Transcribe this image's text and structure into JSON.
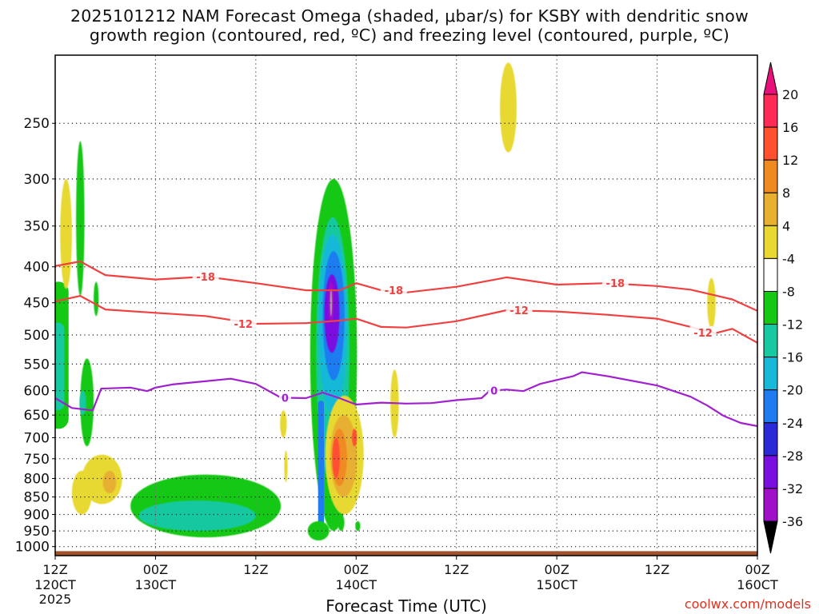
{
  "title_line1": "2025101212 NAM Forecast Omega (shaded, μbar/s) for KSBY with dendritic snow",
  "title_line2": "growth region (contoured, red, ºC) and freezing level (contoured, purple, ºC)",
  "credit": "coolwx.com/models",
  "chart_data": {
    "type": "time-height cross-section",
    "xlabel": "Forecast Time (UTC)",
    "ylabel": "",
    "x_ticks": [
      {
        "top": "12Z",
        "bottom": "120CT",
        "extra": "2025"
      },
      {
        "top": "00Z",
        "bottom": "130CT",
        "extra": ""
      },
      {
        "top": "12Z",
        "bottom": "",
        "extra": ""
      },
      {
        "top": "00Z",
        "bottom": "140CT",
        "extra": ""
      },
      {
        "top": "12Z",
        "bottom": "",
        "extra": ""
      },
      {
        "top": "00Z",
        "bottom": "150CT",
        "extra": ""
      },
      {
        "top": "12Z",
        "bottom": "",
        "extra": ""
      },
      {
        "top": "00Z",
        "bottom": "160CT",
        "extra": ""
      }
    ],
    "x_hours": [
      0,
      12,
      24,
      36,
      48,
      60,
      72,
      84
    ],
    "y_ticks": [
      250,
      300,
      350,
      400,
      450,
      500,
      550,
      600,
      650,
      700,
      750,
      800,
      850,
      900,
      950,
      1000
    ],
    "y_range_hPa": [
      200,
      1030
    ],
    "y_scale": "log",
    "grid": true,
    "colorbar": {
      "labels": [
        "20",
        "16",
        "12",
        "8",
        "4",
        "-4",
        "-8",
        "-12",
        "-16",
        "-20",
        "-24",
        "-28",
        "-32",
        "-36"
      ],
      "colors": [
        "#ff2a55",
        "#ff5030",
        "#f08a20",
        "#e8b030",
        "#e8d830",
        "#ffffff",
        "#14c814",
        "#18c8a0",
        "#18b8d8",
        "#1e7cf0",
        "#2a2ad8",
        "#7a10e0",
        "#a010c8",
        "#a8a8a8"
      ]
    },
    "contours": [
      {
        "label": "-18",
        "color": "#f04040",
        "points": [
          [
            0,
            399
          ],
          [
            3,
            393
          ],
          [
            6,
            411
          ],
          [
            12,
            417
          ],
          [
            18,
            413
          ],
          [
            24,
            422
          ],
          [
            30,
            432
          ],
          [
            34,
            432
          ],
          [
            36,
            422
          ],
          [
            39,
            432
          ],
          [
            42,
            435
          ],
          [
            48,
            427
          ],
          [
            54,
            414
          ],
          [
            60,
            424
          ],
          [
            66,
            422
          ],
          [
            72,
            426
          ],
          [
            76,
            431
          ],
          [
            81,
            445
          ],
          [
            84,
            462
          ]
        ]
      },
      {
        "label": "-12",
        "color": "#f04040",
        "points": [
          [
            0,
            448
          ],
          [
            3,
            440
          ],
          [
            6,
            460
          ],
          [
            12,
            465
          ],
          [
            18,
            470
          ],
          [
            24,
            482
          ],
          [
            30,
            481
          ],
          [
            34,
            477
          ],
          [
            36,
            474
          ],
          [
            39,
            487
          ],
          [
            42,
            488
          ],
          [
            48,
            478
          ],
          [
            54,
            461
          ],
          [
            60,
            463
          ],
          [
            66,
            468
          ],
          [
            72,
            474
          ],
          [
            76,
            487
          ],
          [
            79,
            497
          ],
          [
            81,
            490
          ],
          [
            84,
            513
          ]
        ]
      },
      {
        "label": "0",
        "color": "#a020d0",
        "points": [
          [
            0,
            615
          ],
          [
            2,
            635
          ],
          [
            4.5,
            640
          ],
          [
            5.5,
            596
          ],
          [
            9,
            594
          ],
          [
            11,
            601
          ],
          [
            12,
            594
          ],
          [
            14,
            588
          ],
          [
            21,
            577
          ],
          [
            24,
            587
          ],
          [
            27,
            614
          ],
          [
            30,
            615
          ],
          [
            32,
            604
          ],
          [
            34,
            615
          ],
          [
            36,
            628
          ],
          [
            39,
            624
          ],
          [
            42,
            626
          ],
          [
            45,
            625
          ],
          [
            48,
            619
          ],
          [
            51,
            615
          ],
          [
            52,
            600
          ],
          [
            54,
            598
          ],
          [
            56,
            601
          ],
          [
            58,
            587
          ],
          [
            62,
            572
          ],
          [
            63,
            565
          ],
          [
            66,
            572
          ],
          [
            72,
            590
          ],
          [
            76,
            612
          ],
          [
            78,
            630
          ],
          [
            80,
            652
          ],
          [
            82,
            667
          ],
          [
            84,
            674
          ]
        ]
      }
    ],
    "contour_labels": [
      {
        "text": "-18",
        "x": 18,
        "y": 413
      },
      {
        "text": "-18",
        "x": 40.5,
        "y": 432
      },
      {
        "text": "-18",
        "x": 67,
        "y": 422
      },
      {
        "text": "-12",
        "x": 22.5,
        "y": 482
      },
      {
        "text": "-12",
        "x": 55.5,
        "y": 461
      },
      {
        "text": "-12",
        "x": 77.5,
        "y": 496
      },
      {
        "text": "0",
        "x": 27.5,
        "y": 614
      },
      {
        "text": "0",
        "x": 52.5,
        "y": 600
      }
    ],
    "omega_features": [
      {
        "level": "-8",
        "kind": "band",
        "x": 0.4,
        "dx": 1.2,
        "top": 420,
        "bottom": 680
      },
      {
        "level": "-12",
        "kind": "band",
        "x": 0.3,
        "dx": 0.8,
        "top": 480,
        "bottom": 640
      },
      {
        "level": "-8",
        "kind": "blob",
        "x": 3.0,
        "dx": 0.5,
        "top": 265,
        "bottom": 440
      },
      {
        "level": "-8",
        "kind": "blob",
        "x": 3.8,
        "dx": 0.8,
        "top": 540,
        "bottom": 720
      },
      {
        "level": "-12",
        "kind": "blob",
        "x": 3.3,
        "dx": 0.4,
        "top": 600,
        "bottom": 650
      },
      {
        "level": "4",
        "kind": "blob",
        "x": 1.3,
        "dx": 0.7,
        "top": 300,
        "bottom": 430
      },
      {
        "level": "4",
        "kind": "blob",
        "x": 3.2,
        "dx": 1.2,
        "top": 780,
        "bottom": 900
      },
      {
        "level": "4",
        "kind": "blob",
        "x": 5.6,
        "dx": 2.4,
        "top": 740,
        "bottom": 870
      },
      {
        "level": "8",
        "kind": "blob",
        "x": 6.5,
        "dx": 0.8,
        "top": 780,
        "bottom": 840
      },
      {
        "level": "-8",
        "kind": "blob",
        "x": 18,
        "dx": 9,
        "top": 790,
        "bottom": 970
      },
      {
        "level": "-12",
        "kind": "blob",
        "x": 17,
        "dx": 7,
        "top": 860,
        "bottom": 950
      },
      {
        "level": "-8",
        "kind": "blob",
        "x": 33.3,
        "dx": 2.8,
        "top": 300,
        "bottom": 950
      },
      {
        "level": "-12",
        "kind": "blob",
        "x": 33.2,
        "dx": 2.0,
        "top": 340,
        "bottom": 820
      },
      {
        "level": "-16",
        "kind": "blob",
        "x": 33.2,
        "dx": 1.7,
        "top": 360,
        "bottom": 650
      },
      {
        "level": "-20",
        "kind": "blob",
        "x": 33.3,
        "dx": 1.3,
        "top": 380,
        "bottom": 580
      },
      {
        "level": "-28",
        "kind": "blob",
        "x": 33.1,
        "dx": 0.9,
        "top": 410,
        "bottom": 530
      },
      {
        "level": "-32",
        "kind": "blob",
        "x": 33.0,
        "dx": 0.35,
        "top": 420,
        "bottom": 480
      },
      {
        "level": "-36",
        "kind": "blob",
        "x": 33.0,
        "dx": 0.12,
        "top": 430,
        "bottom": 470
      },
      {
        "level": "-20",
        "kind": "band",
        "x": 31.8,
        "dx": 0.35,
        "top": 620,
        "bottom": 960
      },
      {
        "level": "-8",
        "kind": "blob",
        "x": 31.5,
        "dx": 1.3,
        "top": 920,
        "bottom": 980
      },
      {
        "level": "4",
        "kind": "blob",
        "x": 34.6,
        "dx": 2.3,
        "top": 610,
        "bottom": 900
      },
      {
        "level": "8",
        "kind": "blob",
        "x": 34.5,
        "dx": 1.6,
        "top": 650,
        "bottom": 850
      },
      {
        "level": "12",
        "kind": "blob",
        "x": 34.0,
        "dx": 0.9,
        "top": 680,
        "bottom": 820
      },
      {
        "level": "16",
        "kind": "blob",
        "x": 33.6,
        "dx": 0.45,
        "top": 700,
        "bottom": 800
      },
      {
        "level": "16",
        "kind": "blob",
        "x": 35.8,
        "dx": 0.3,
        "top": 680,
        "bottom": 720
      },
      {
        "level": "-8",
        "kind": "blob",
        "x": 34.2,
        "dx": 0.4,
        "top": 900,
        "bottom": 950
      },
      {
        "level": "-8",
        "kind": "blob",
        "x": 36.2,
        "dx": 0.3,
        "top": 920,
        "bottom": 950
      },
      {
        "level": "4",
        "kind": "blob",
        "x": 27.3,
        "dx": 0.4,
        "top": 640,
        "bottom": 700
      },
      {
        "level": "4",
        "kind": "blob",
        "x": 27.6,
        "dx": 0.2,
        "top": 730,
        "bottom": 810
      },
      {
        "level": "4",
        "kind": "blob",
        "x": 40.6,
        "dx": 0.5,
        "top": 560,
        "bottom": 700
      },
      {
        "level": "4",
        "kind": "blob",
        "x": 54.2,
        "dx": 1.0,
        "top": 205,
        "bottom": 275
      },
      {
        "level": "4",
        "kind": "blob",
        "x": 78.5,
        "dx": 0.5,
        "top": 415,
        "bottom": 490
      },
      {
        "level": "-8",
        "kind": "blob",
        "x": 4.9,
        "dx": 0.3,
        "top": 420,
        "bottom": 470
      }
    ],
    "surface": {
      "color": "#a0522d",
      "top_hPa": 1015
    }
  }
}
